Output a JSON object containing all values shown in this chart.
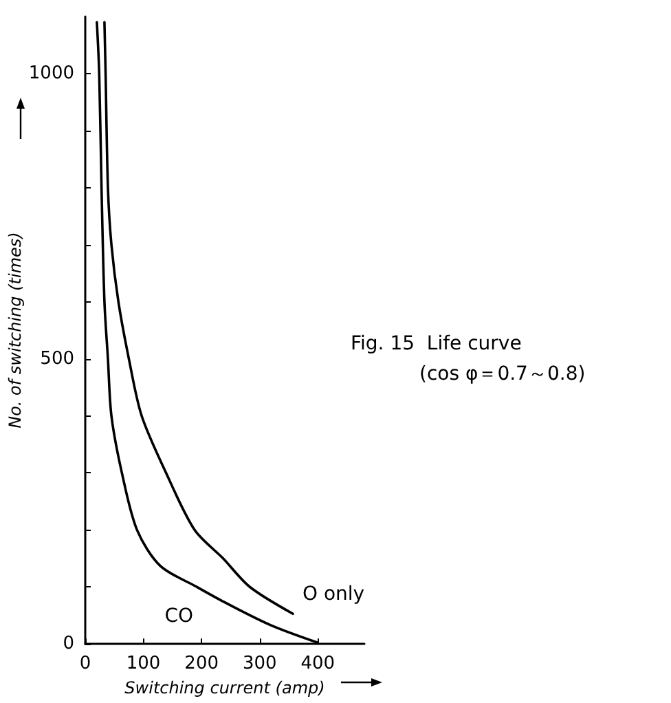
{
  "chart_data": {
    "type": "line",
    "title": "Fig. 15  Life curve",
    "subtitle": "(cos φ＝0.7～0.8)",
    "xlabel": "Switching current (amp)",
    "ylabel": "No. of switching (times)",
    "xlim": [
      0,
      480
    ],
    "xticks": [
      0,
      100,
      200,
      300,
      400
    ],
    "ylim": [
      0,
      1100
    ],
    "yticks": [
      0,
      {
        "value": 100,
        "label": null
      },
      {
        "value": 200,
        "label": null
      },
      {
        "value": 300,
        "label": null
      },
      {
        "value": 400,
        "label": null
      },
      500,
      {
        "value": 600,
        "label": null
      },
      {
        "value": 700,
        "label": null
      },
      {
        "value": 800,
        "label": null
      },
      {
        "value": 900,
        "label": null
      },
      1000
    ],
    "grid": false,
    "legend": false,
    "marker": "none",
    "line_style": "solid",
    "series": [
      {
        "name": "O only",
        "color": "#000000",
        "x": [
          33,
          35,
          39,
          45,
          57,
          75,
          97,
          139,
          188,
          237,
          283,
          357
        ],
        "values": [
          1090,
          1000,
          800,
          700,
          600,
          500,
          400,
          300,
          200,
          150,
          100,
          53
        ]
      },
      {
        "name": "CO",
        "color": "#000000",
        "x": [
          20,
          24,
          28,
          33,
          39,
          45,
          63,
          89,
          129,
          192,
          240,
          319,
          398
        ],
        "values": [
          1090,
          1000,
          800,
          600,
          500,
          400,
          300,
          200,
          137,
          100,
          73,
          33,
          3
        ]
      }
    ]
  }
}
